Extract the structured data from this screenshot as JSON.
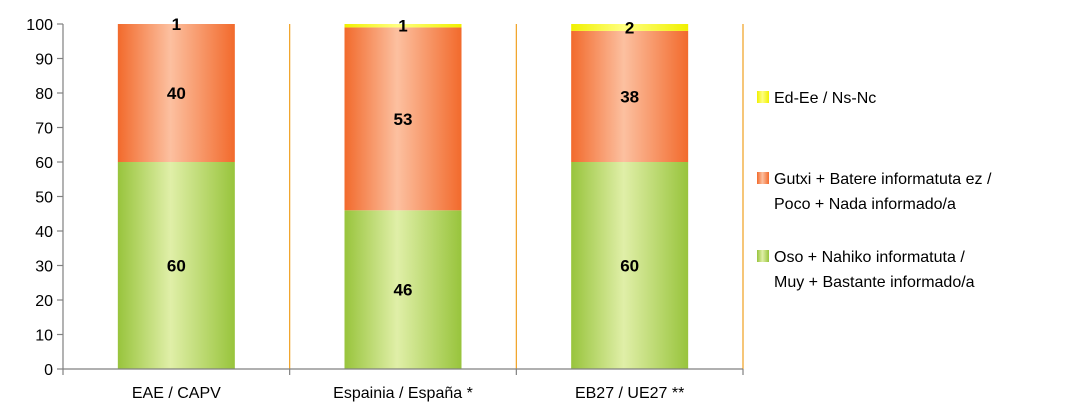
{
  "chart_data": {
    "type": "bar",
    "stacked": true,
    "categories": [
      "EAE / CAPV",
      "Espainia / España *",
      "EB27 / UE27 **"
    ],
    "series": [
      {
        "name": "Oso + Nahiko informatuta / Muy + Bastante informado/a",
        "name_lines": [
          "Oso + Nahiko informatuta /",
          "Muy + Bastante informado/a"
        ],
        "values": [
          60,
          46,
          60
        ],
        "color_light": "#e0efa8",
        "color_dark": "#98c43c"
      },
      {
        "name": "Gutxi + Batere informatuta ez / Poco + Nada informado/a",
        "name_lines": [
          "Gutxi + Batere informatuta ez /",
          "Poco + Nada informado/a"
        ],
        "values": [
          40,
          53,
          38
        ],
        "color_light": "#fcc0a0",
        "color_dark": "#f26a2c"
      },
      {
        "name": "Ed-Ee / Ns-Nc",
        "name_lines": [
          "Ed-Ee / Ns-Nc"
        ],
        "values": [
          1,
          1,
          2
        ],
        "color_light": "#ffff80",
        "color_dark": "#f0f000"
      }
    ],
    "ylim": [
      0,
      100
    ],
    "yticks": [
      0,
      10,
      20,
      30,
      40,
      50,
      60,
      70,
      80,
      90,
      100
    ],
    "legend_position": "right",
    "divider_color": "#f0a020",
    "grid": false
  }
}
